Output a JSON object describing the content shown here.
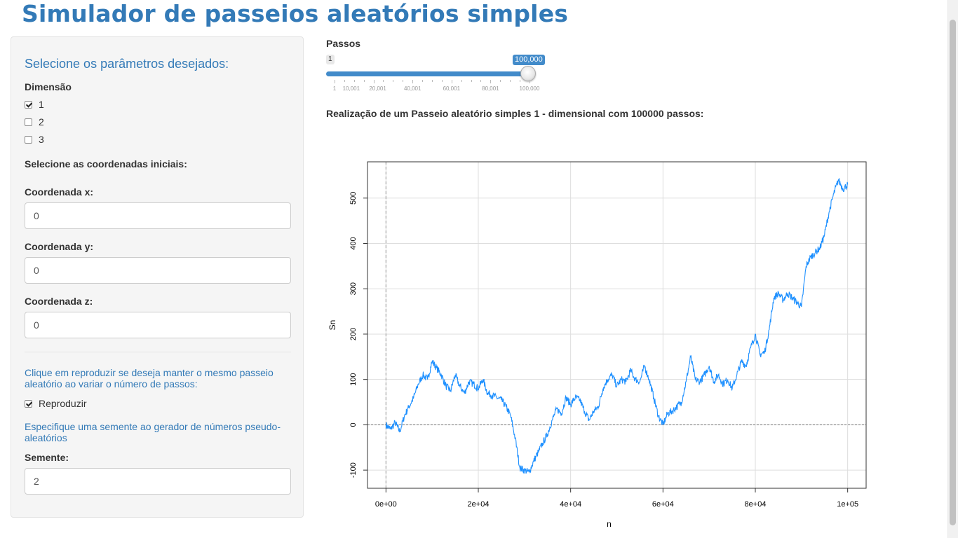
{
  "app": {
    "title": "Simulador de passeios aleatórios simples"
  },
  "sidebar": {
    "heading": "Selecione os parâmetros desejados:",
    "dimension": {
      "label": "Dimensão",
      "options": [
        {
          "label": "1",
          "checked": true
        },
        {
          "label": "2",
          "checked": false
        },
        {
          "label": "3",
          "checked": false
        }
      ]
    },
    "coords_heading": "Selecione as coordenadas iniciais:",
    "coord_x": {
      "label": "Coordenada x:",
      "value": "0"
    },
    "coord_y": {
      "label": "Coordenada y:",
      "value": "0"
    },
    "coord_z": {
      "label": "Coordenada z:",
      "value": "0"
    },
    "reproduce_help": "Clique em reproduzir se deseja manter o mesmo passeio aleatório ao variar o número de passos:",
    "reproduce": {
      "label": "Reproduzir",
      "checked": true
    },
    "seed_help": "Especifique uma semente ao gerador de números pseudo-aleatórios",
    "seed": {
      "label": "Semente:",
      "value": "2"
    }
  },
  "main": {
    "slider": {
      "label": "Passos",
      "min_label": "1",
      "value_label": "100,000",
      "value": 100000,
      "min": 1,
      "max": 100000,
      "accent": "#428bca",
      "ticks": [
        "1",
        "10,001",
        "20,001",
        "40,001",
        "60,001",
        "80,001",
        "100,000"
      ]
    },
    "plot_title": "Realização de um Passeio aleatório simples 1 - dimensional com 100000 passos:"
  },
  "chart_data": {
    "type": "line",
    "xlabel": "n",
    "ylabel": "Sn",
    "xlim": [
      -4000,
      104000
    ],
    "ylim": [
      -140,
      580
    ],
    "x_ticks": [
      {
        "value": 0,
        "label": "0e+00"
      },
      {
        "value": 20000,
        "label": "2e+04"
      },
      {
        "value": 40000,
        "label": "4e+04"
      },
      {
        "value": 60000,
        "label": "6e+04"
      },
      {
        "value": 80000,
        "label": "8e+04"
      },
      {
        "value": 100000,
        "label": "1e+05"
      }
    ],
    "y_ticks": [
      {
        "value": -100,
        "label": "-100"
      },
      {
        "value": 0,
        "label": "0"
      },
      {
        "value": 100,
        "label": "100"
      },
      {
        "value": 200,
        "label": "200"
      },
      {
        "value": 300,
        "label": "300"
      },
      {
        "value": 400,
        "label": "400"
      },
      {
        "value": 500,
        "label": "500"
      }
    ],
    "grid": true,
    "reference_lines": {
      "h": 0,
      "v": 0
    },
    "line_color": "#1e90ff",
    "series": [
      {
        "x": [
          0,
          1000,
          2000,
          3000,
          4000,
          5000,
          6000,
          7000,
          8000,
          9000,
          10000,
          11000,
          12000,
          13000,
          14000,
          15000,
          16000,
          17000,
          18000,
          19000,
          20000,
          21000,
          22000,
          23000,
          24000,
          25000,
          26000,
          27000,
          28000,
          29000,
          30000,
          31000,
          32000,
          33000,
          34000,
          35000,
          36000,
          37000,
          38000,
          39000,
          40000,
          41000,
          42000,
          43000,
          44000,
          45000,
          46000,
          47000,
          48000,
          49000,
          50000,
          51000,
          52000,
          53000,
          54000,
          55000,
          56000,
          57000,
          58000,
          59000,
          60000,
          61000,
          62000,
          63000,
          64000,
          65000,
          66000,
          67000,
          68000,
          69000,
          70000,
          71000,
          72000,
          73000,
          74000,
          75000,
          76000,
          77000,
          78000,
          79000,
          80000,
          81000,
          82000,
          83000,
          84000,
          85000,
          86000,
          87000,
          88000,
          89000,
          90000,
          91000,
          92000,
          93000,
          94000,
          95000,
          96000,
          97000,
          98000,
          99000,
          100000
        ],
        "y": [
          0,
          -10,
          5,
          -15,
          20,
          40,
          60,
          90,
          110,
          100,
          140,
          125,
          110,
          85,
          75,
          110,
          85,
          70,
          95,
          90,
          80,
          100,
          70,
          65,
          60,
          55,
          40,
          20,
          -30,
          -95,
          -100,
          -105,
          -80,
          -60,
          -40,
          -20,
          10,
          35,
          25,
          60,
          45,
          60,
          55,
          30,
          10,
          30,
          40,
          80,
          100,
          110,
          85,
          100,
          95,
          120,
          100,
          95,
          130,
          100,
          60,
          20,
          0,
          25,
          30,
          40,
          50,
          95,
          150,
          100,
          95,
          110,
          130,
          95,
          110,
          90,
          100,
          80,
          110,
          140,
          130,
          170,
          200,
          155,
          160,
          210,
          280,
          290,
          275,
          290,
          280,
          270,
          260,
          350,
          370,
          380,
          390,
          420,
          470,
          510,
          540,
          520,
          530
        ]
      }
    ]
  }
}
